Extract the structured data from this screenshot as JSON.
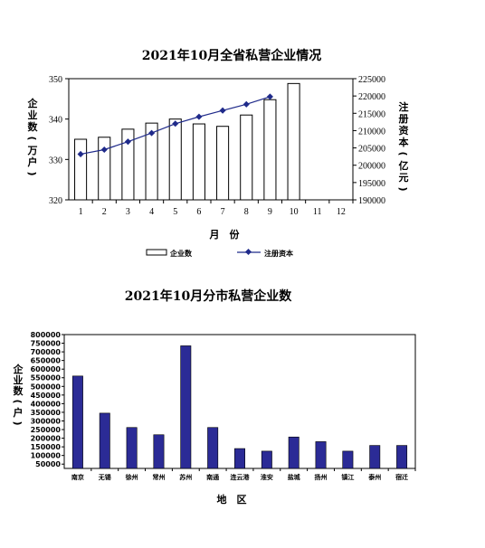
{
  "chart_data": [
    {
      "type": "bar",
      "title": "2021年10月全省私营企业情况",
      "xlabel": "月　份",
      "categories": [
        "1",
        "2",
        "3",
        "4",
        "5",
        "6",
        "7",
        "8",
        "9",
        "10",
        "11",
        "12"
      ],
      "ylabel": "企业数（万户）",
      "y2label": "注册资本（亿元）",
      "ylim": [
        320,
        350
      ],
      "yticks": [
        "320",
        "330",
        "340",
        "350"
      ],
      "y2lim": [
        190000,
        225000
      ],
      "y2ticks": [
        "190000",
        "195000",
        "200000",
        "205000",
        "210000",
        "215000",
        "220000",
        "225000"
      ],
      "series": [
        {
          "name": "企业数",
          "type": "bar",
          "axis": "left",
          "values": [
            335.0,
            335.5,
            337.5,
            339.0,
            340.0,
            338.8,
            338.2,
            341.0,
            344.8,
            348.8,
            null,
            null
          ]
        },
        {
          "name": "注册资本",
          "type": "line",
          "axis": "right",
          "color": "#1f2a8a",
          "values": [
            203200,
            204500,
            206800,
            209300,
            212000,
            214000,
            215800,
            217600,
            219800,
            null,
            null,
            null
          ]
        }
      ],
      "legend": "bottom",
      "grid": false
    },
    {
      "type": "bar",
      "title": "2021年10月分市私营企业数",
      "xlabel": "地　区",
      "ylabel": "企业数（户）",
      "ylim": [
        50000,
        800000
      ],
      "yticks": [
        "50000",
        "100000",
        "150000",
        "200000",
        "250000",
        "300000",
        "350000",
        "400000",
        "450000",
        "500000",
        "550000",
        "600000",
        "650000",
        "700000",
        "750000",
        "800000"
      ],
      "categories": [
        "南京",
        "无锡",
        "徐州",
        "常州",
        "苏州",
        "南通",
        "连云港",
        "淮安",
        "盐城",
        "扬州",
        "镇江",
        "泰州",
        "宿迁"
      ],
      "series": [
        {
          "name": "",
          "color": "#2b2b96",
          "values": [
            560000,
            345000,
            262000,
            220000,
            735000,
            262000,
            140000,
            125000,
            207000,
            180000,
            125000,
            158000,
            158000
          ]
        }
      ],
      "grid": false
    }
  ]
}
